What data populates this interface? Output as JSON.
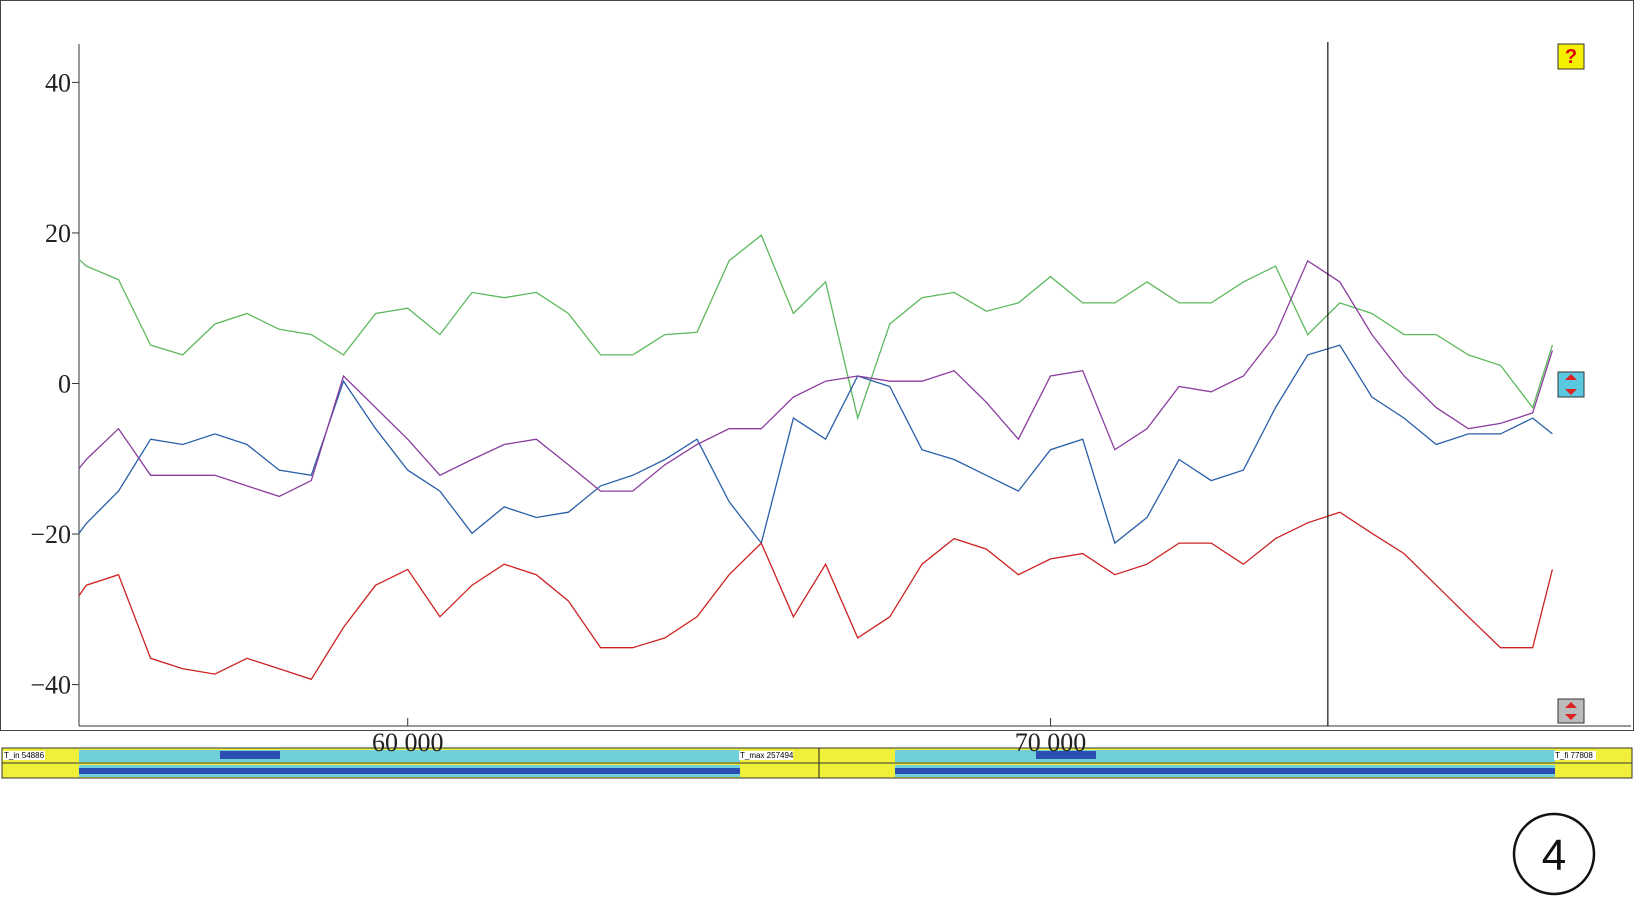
{
  "chart_data": {
    "type": "line",
    "x": [
      54886,
      55000,
      55500,
      56000,
      56500,
      57000,
      57500,
      58000,
      58500,
      59000,
      59500,
      60000,
      60500,
      61000,
      61500,
      62000,
      62500,
      63000,
      63500,
      64000,
      64500,
      65000,
      65500,
      66000,
      66500,
      67000,
      67500,
      68000,
      68500,
      69000,
      69500,
      70000,
      70500,
      71000,
      71500,
      72000,
      72500,
      73000,
      73500,
      74000,
      74500,
      75000,
      75500,
      76000,
      76500,
      77000,
      77500,
      77808
    ],
    "series": [
      {
        "color": "#5cb85c",
        "values": [
          16.5,
          15.6,
          13.8,
          5.1,
          3.8,
          7.9,
          9.3,
          7.2,
          6.5,
          3.8,
          9.3,
          10,
          6.5,
          12.1,
          11.4,
          12.1,
          9.3,
          3.8,
          3.8,
          6.5,
          6.8,
          16.3,
          19.7,
          9.3,
          13.5,
          -4.6,
          7.9,
          11.4,
          12.1,
          9.6,
          10.7,
          14.2,
          10.7,
          10.7,
          13.5,
          10.7,
          10.7,
          13.5,
          15.6,
          6.5,
          10.7,
          9.3,
          6.5,
          6.5,
          3.8,
          2.4,
          -3.2,
          5.1
        ]
      },
      {
        "color": "#2a5fa8",
        "values": [
          -19.9,
          -18.6,
          -14.3,
          -7.4,
          -8.1,
          -6.7,
          -8.1,
          -11.5,
          -12.2,
          0.3,
          -6,
          -11.5,
          -14.3,
          -19.9,
          -16.4,
          -17.8,
          -17.1,
          -13.6,
          -12.2,
          -10.1,
          -7.4,
          -15.7,
          -21.2,
          -4.6,
          -7.4,
          1,
          -0.4,
          -8.8,
          -10.1,
          -12.2,
          -14.3,
          -8.8,
          -7.4,
          -21.2,
          -17.8,
          -10.1,
          -12.9,
          -11.5,
          -3.2,
          3.8,
          5.1,
          -1.8,
          -4.6,
          -8.1,
          -6.7,
          -6.7,
          -4.6,
          -6.7
        ]
      },
      {
        "color": "#8b3d9e",
        "values": [
          -11.3,
          -10.1,
          -6,
          -12.2,
          -12.2,
          -12.2,
          -13.6,
          -15,
          -12.9,
          1,
          -3.2,
          -7.4,
          -12.2,
          -10.1,
          -8.1,
          -7.4,
          -10.8,
          -14.3,
          -14.3,
          -10.8,
          -8.1,
          -6,
          -6,
          -1.8,
          0.3,
          1,
          0.3,
          0.3,
          1.7,
          -2.5,
          -7.4,
          1,
          1.7,
          -8.8,
          -6,
          -0.4,
          -1.1,
          1,
          6.5,
          16.3,
          13.5,
          6.5,
          1,
          -3.2,
          -6,
          -5.3,
          -3.9,
          4.4
        ]
      },
      {
        "color": "#cc2222",
        "values": [
          -28.2,
          -26.8,
          -25.4,
          -36.5,
          -37.9,
          -38.6,
          -36.5,
          -37.9,
          -39.3,
          -32.4,
          -26.8,
          -24.7,
          -31,
          -26.8,
          -24,
          -25.4,
          -28.9,
          -35.1,
          -35.1,
          -33.8,
          -31,
          -25.4,
          -21.2,
          -31,
          -24,
          -33.8,
          -31,
          -24,
          -20.6,
          -22,
          -25.4,
          -23.3,
          -22.6,
          -25.4,
          -24,
          -21.2,
          -21.2,
          -24,
          -20.6,
          -18.5,
          -17.1,
          -19.9,
          -22.6,
          -26.8,
          -31,
          -35.1,
          -35.1,
          -24.7
        ]
      }
    ],
    "xlim": [
      54886,
      79030
    ],
    "ylim": [
      -45.5,
      45.1
    ],
    "xticks": [
      {
        "value": 60000,
        "label": "60 000"
      },
      {
        "value": 70000,
        "label": "70 000"
      }
    ],
    "yticks": [
      40,
      20,
      0,
      {
        "value": -20,
        "label": "−20"
      },
      {
        "value": -40,
        "label": "−40"
      }
    ],
    "cursor": 74314
  },
  "timeline": {
    "start_label": "T_in 54886",
    "max_label": "T_max 257494",
    "end_label": "T_fi 77808"
  },
  "figure_label": "4"
}
